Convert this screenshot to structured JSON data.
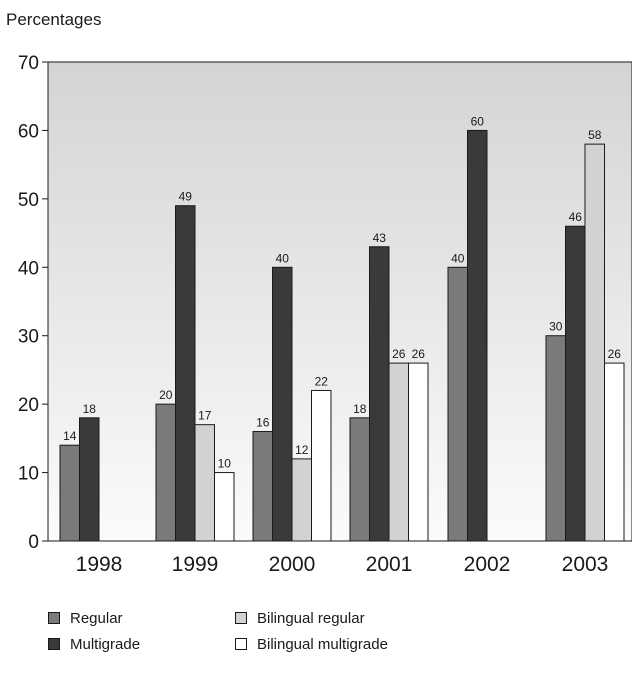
{
  "chart_data": {
    "type": "bar",
    "ylabel": "Percentages",
    "ylim": [
      0,
      70
    ],
    "yticks": [
      0,
      10,
      20,
      30,
      40,
      50,
      60,
      70
    ],
    "categories": [
      "1998",
      "1999",
      "2000",
      "2001",
      "2002",
      "2003"
    ],
    "series": [
      {
        "name": "Regular",
        "color": "#7a7a7a",
        "values": [
          14,
          20,
          16,
          18,
          40,
          30
        ]
      },
      {
        "name": "Multigrade",
        "color": "#3a3a3a",
        "values": [
          18,
          49,
          40,
          43,
          60,
          46
        ]
      },
      {
        "name": "Bilingual regular",
        "color": "#d2d2d2",
        "values": [
          null,
          17,
          12,
          26,
          null,
          58
        ]
      },
      {
        "name": "Bilingual multigrade",
        "color": "#ffffff",
        "values": [
          null,
          10,
          22,
          26,
          null,
          26
        ]
      }
    ],
    "legend_position": "bottom",
    "grid": false
  }
}
